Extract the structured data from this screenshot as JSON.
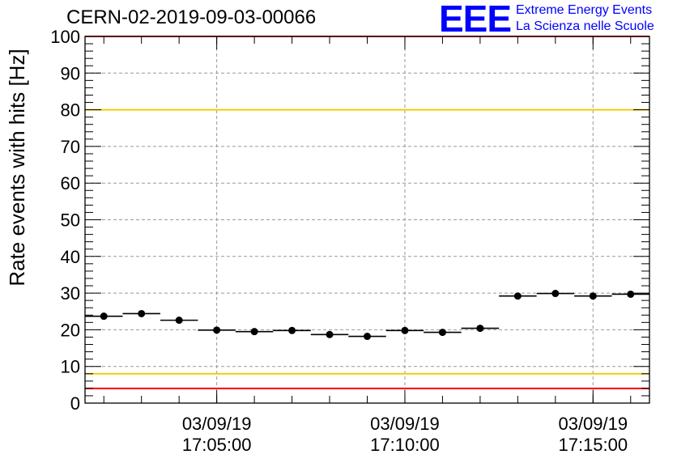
{
  "header": {
    "title": "CERN-02-2019-09-03-00066",
    "logo": "EEE",
    "logo_line1": "Extreme Energy Events",
    "logo_line2": "La Scienza nelle Scuole"
  },
  "colors": {
    "red_limit": "#ff0000",
    "yellow_limit": "#f2cc0c",
    "points": "#000000",
    "grid": "#999999",
    "logo": "#0000ff"
  },
  "chart_data": {
    "type": "scatter",
    "ylabel": "Rate events with hits [Hz]",
    "ylim": [
      0,
      100
    ],
    "yticks": [
      0,
      10,
      20,
      30,
      40,
      50,
      60,
      70,
      80,
      90,
      100
    ],
    "x_unit": "minutes",
    "xlim": [
      0.0,
      15.0
    ],
    "xticks": [
      {
        "x": 3.5,
        "date": "03/09/19",
        "time": "17:05:00"
      },
      {
        "x": 8.5,
        "date": "03/09/19",
        "time": "17:10:00"
      },
      {
        "x": 13.5,
        "date": "03/09/19",
        "time": "17:15:00"
      }
    ],
    "grid": true,
    "bin_width": 1.0,
    "points": [
      {
        "x": 0.5,
        "y": 23.7
      },
      {
        "x": 1.5,
        "y": 24.4
      },
      {
        "x": 2.5,
        "y": 22.6
      },
      {
        "x": 3.5,
        "y": 19.9
      },
      {
        "x": 4.5,
        "y": 19.5
      },
      {
        "x": 5.5,
        "y": 19.8
      },
      {
        "x": 6.5,
        "y": 18.7
      },
      {
        "x": 7.5,
        "y": 18.2
      },
      {
        "x": 8.5,
        "y": 19.8
      },
      {
        "x": 9.5,
        "y": 19.3
      },
      {
        "x": 10.5,
        "y": 20.4
      },
      {
        "x": 11.5,
        "y": 29.2
      },
      {
        "x": 12.5,
        "y": 29.9
      },
      {
        "x": 13.5,
        "y": 29.2
      },
      {
        "x": 14.5,
        "y": 29.7
      }
    ],
    "reference_lines": [
      {
        "y": 100,
        "color": "red"
      },
      {
        "y": 80,
        "color": "yellow"
      },
      {
        "y": 8,
        "color": "yellow"
      },
      {
        "y": 4,
        "color": "red"
      }
    ]
  }
}
